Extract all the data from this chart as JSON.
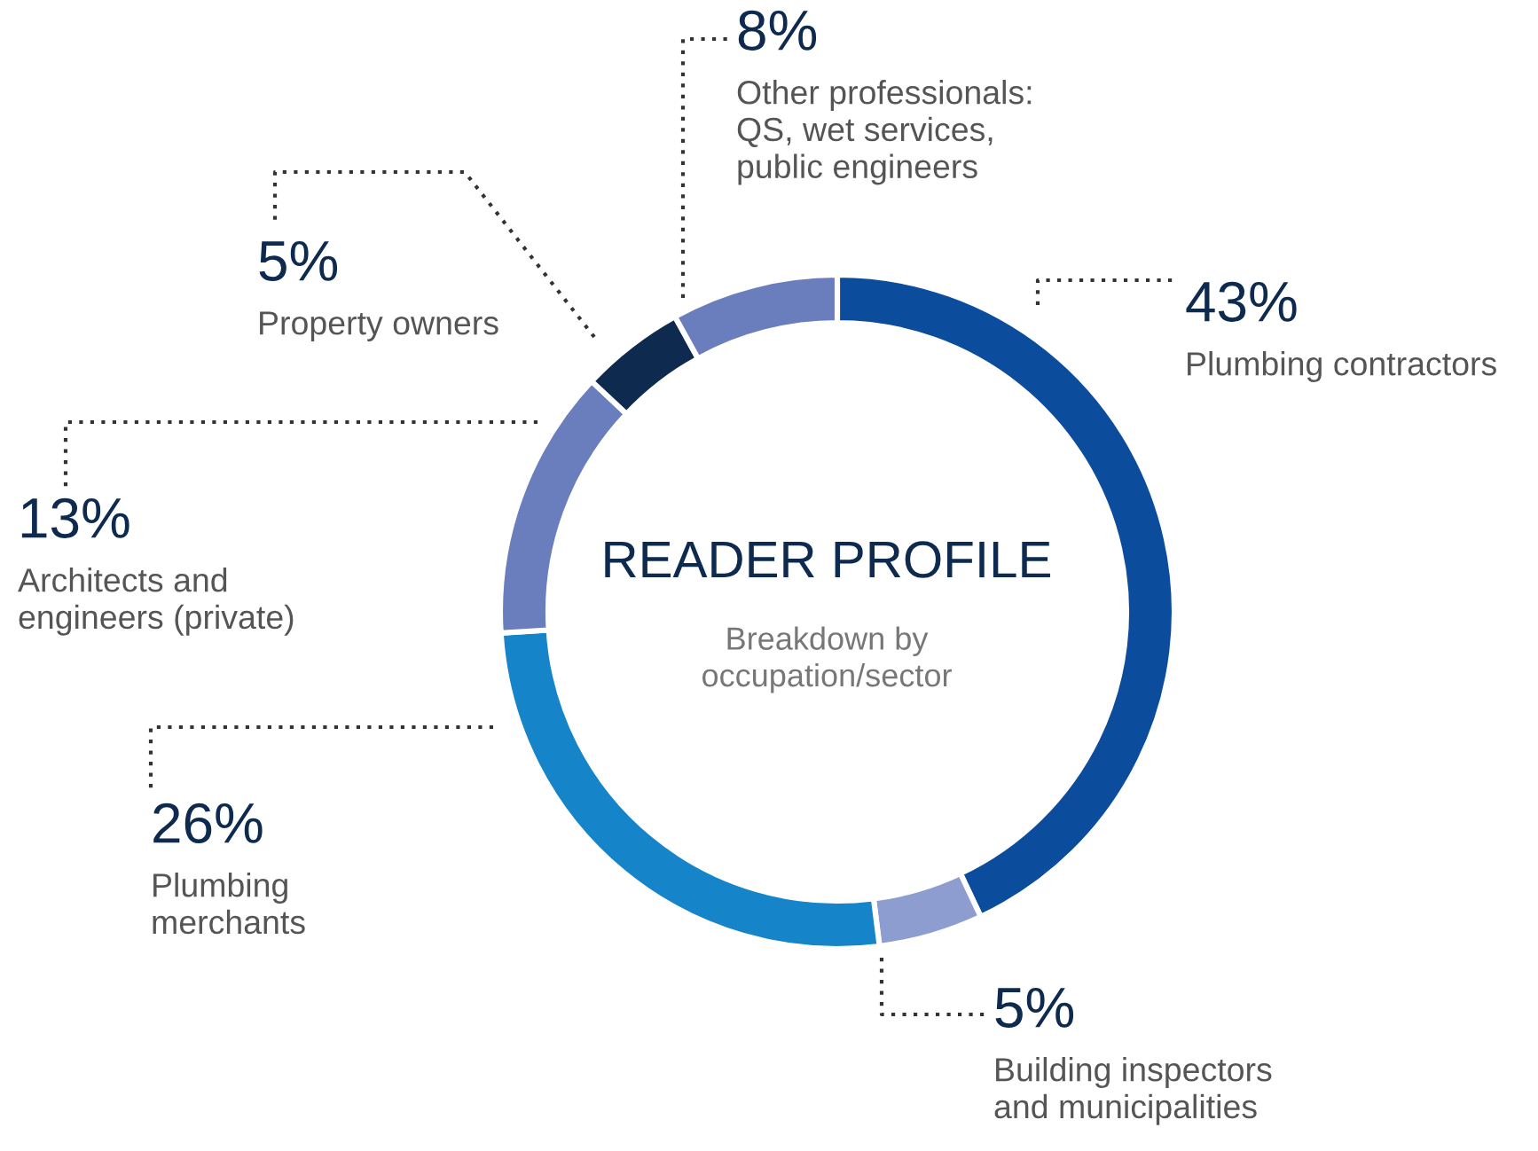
{
  "chart_data": {
    "type": "donut",
    "title": "READER PROFILE",
    "subtitle": "Breakdown by\noccupation/sector",
    "categories": [
      "Plumbing contractors",
      "Building inspectors\nand municipalities",
      "Plumbing\nmerchants",
      "Architects and\nengineers (private)",
      "Property owners",
      "Other professionals:\nQS, wet services,\npublic engineers"
    ],
    "values": [
      43,
      5,
      26,
      13,
      5,
      8
    ],
    "value_labels": [
      "43%",
      "5%",
      "26%",
      "13%",
      "5%",
      "8%"
    ],
    "colors": [
      "#0b4c9c",
      "#8e9dd0",
      "#1584c8",
      "#6a7dbd",
      "#0e2a4f",
      "#6a7dbd"
    ]
  }
}
